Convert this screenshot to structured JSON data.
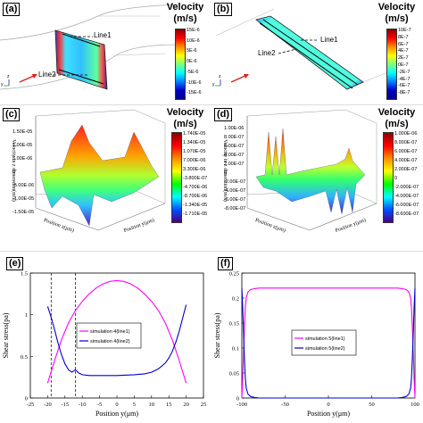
{
  "panels": {
    "a": {
      "tag": "(a)",
      "velocity_title": "Velocity",
      "velocity_unit": "(m/s)",
      "line1": "Line1",
      "line2": "Line2",
      "colorbar_ticks": [
        "15E-6",
        "10E-6",
        "5E-6",
        "0E-6",
        "-5E-6",
        "-10E-6",
        "-15E-6"
      ],
      "axis_y": "y",
      "axis_z": "z"
    },
    "b": {
      "tag": "(b)",
      "velocity_title": "Velocity",
      "velocity_unit": "(m/s)",
      "line1": "Line1",
      "line2": "Line2",
      "colorbar_ticks": [
        "10E-7",
        "8E-7",
        "6E-7",
        "4E-7",
        "2E-7",
        "0E-7",
        "-2E-7",
        "-4E-7",
        "-6E-7",
        "-8E-7"
      ],
      "axis_y": "y",
      "axis_z": "z"
    },
    "c": {
      "tag": "(c)",
      "velocity_title": "Velocity",
      "velocity_unit": "(m/s)",
      "colorbar_ticks": [
        "1.740E-05",
        "1.340E-05",
        "1.070E-05",
        "7.000E-06",
        "3.300E-06",
        "-3.800E-07",
        "-4.700E-06",
        "-8.700E-06",
        "-1.340E-05",
        "-1.710E-05"
      ],
      "z_axis_label": "Velocity in z dimension(m/s)",
      "z_ticks": [
        "1.50E-05",
        "1.00E-05",
        "5.00E-06",
        "0",
        "-5.00E-06",
        "-1.00E-05",
        "-1.50E-05"
      ],
      "x_axis_label": "Position z(μm)",
      "y_axis_label": "Position y(μm)"
    },
    "d": {
      "tag": "(d)",
      "velocity_title": "Velocity",
      "velocity_unit": "(m/s)",
      "colorbar_ticks": [
        "1.000E-06",
        "8.000E-07",
        "6.000E-07",
        "4.000E-07",
        "2.000E-07",
        "0",
        "-2.000E-07",
        "-4.000E-07",
        "-6.000E-07",
        "-8.600E-07"
      ],
      "z_axis_label": "Velocity in z dimension(m/s)",
      "z_ticks": [
        "1.00E-06",
        "8.00E-07",
        "6.00E-07",
        "4.00E-07",
        "2.00E-07",
        "0",
        "-2.00E-07",
        "-4.00E-07",
        "-6.00E-07",
        "-8.00E-07"
      ],
      "x_axis_label": "Position z(μm)",
      "y_axis_label": "Position y(μm)"
    }
  },
  "chart_data": [
    {
      "panel": "e",
      "type": "line",
      "tag": "(e)",
      "xlabel": "Position y(μm)",
      "ylabel": "Shear stress(pa)",
      "xlim": [
        -25,
        25
      ],
      "ylim": [
        0,
        1.5
      ],
      "xticks": [
        "-25",
        "-20",
        "-15",
        "-10",
        "-5",
        "0",
        "5",
        "10",
        "15",
        "20",
        "25"
      ],
      "yticks": [
        "0",
        "0.5",
        "1",
        "1.5"
      ],
      "vlines": [
        -19,
        -12
      ],
      "series": [
        {
          "name": "simulation 4(line1)",
          "color": "#ff00ff",
          "x": [
            -20,
            -18,
            -16,
            -14,
            -12,
            -10,
            -8,
            -6,
            -4,
            -2,
            0,
            2,
            4,
            6,
            8,
            10,
            12,
            14,
            16,
            18,
            20
          ],
          "y": [
            0.18,
            0.45,
            0.7,
            0.9,
            1.05,
            1.16,
            1.25,
            1.32,
            1.37,
            1.4,
            1.41,
            1.4,
            1.37,
            1.32,
            1.25,
            1.16,
            1.05,
            0.9,
            0.7,
            0.45,
            0.18
          ]
        },
        {
          "name": "simulation 4(line2)",
          "color": "#0000cc",
          "x": [
            -20,
            -19,
            -18,
            -17,
            -16,
            -15,
            -14,
            -13,
            -12,
            -11,
            -10,
            -8,
            -5,
            0,
            5,
            8,
            10,
            12,
            14,
            15,
            16,
            17,
            18,
            19,
            20
          ],
          "y": [
            1.1,
            0.97,
            0.82,
            0.66,
            0.52,
            0.41,
            0.34,
            0.31,
            0.34,
            0.3,
            0.28,
            0.27,
            0.27,
            0.27,
            0.28,
            0.29,
            0.31,
            0.35,
            0.42,
            0.48,
            0.56,
            0.67,
            0.8,
            0.96,
            1.12
          ]
        }
      ]
    },
    {
      "panel": "f",
      "type": "line",
      "tag": "(f)",
      "xlabel": "Position y(μm)",
      "ylabel": "Shear stress(pa)",
      "xlim": [
        -100,
        100
      ],
      "ylim": [
        0,
        0.25
      ],
      "xticks": [
        "-100",
        "-50",
        "0",
        "50",
        "100"
      ],
      "yticks": [
        "0",
        "0.05",
        "0.1",
        "0.15",
        "0.2",
        "0.25"
      ],
      "series": [
        {
          "name": "simulation 5(line1)",
          "color": "#ff00ff",
          "x": [
            -100,
            -99,
            -98,
            -97,
            -96,
            -95,
            -93,
            -90,
            -85,
            -80,
            -60,
            -30,
            0,
            30,
            60,
            80,
            85,
            90,
            93,
            95,
            96,
            97,
            98,
            99,
            100
          ],
          "y": [
            0.0,
            0.04,
            0.09,
            0.14,
            0.18,
            0.2,
            0.212,
            0.217,
            0.219,
            0.22,
            0.22,
            0.22,
            0.22,
            0.22,
            0.22,
            0.22,
            0.219,
            0.217,
            0.212,
            0.2,
            0.18,
            0.14,
            0.09,
            0.04,
            0.0
          ]
        },
        {
          "name": "simulation 5(line2)",
          "color": "#0000cc",
          "x": [
            -100,
            -99,
            -98,
            -97,
            -96,
            -95,
            -93,
            -90,
            -85,
            -80,
            -60,
            -30,
            0,
            30,
            60,
            80,
            85,
            90,
            93,
            95,
            96,
            97,
            98,
            99,
            100
          ],
          "y": [
            0.22,
            0.18,
            0.13,
            0.08,
            0.04,
            0.02,
            0.008,
            0.003,
            0.001,
            0.0,
            0.0,
            0.0,
            0.0,
            0.0,
            0.0,
            0.0,
            0.001,
            0.003,
            0.008,
            0.02,
            0.04,
            0.08,
            0.13,
            0.18,
            0.22
          ]
        }
      ]
    }
  ]
}
